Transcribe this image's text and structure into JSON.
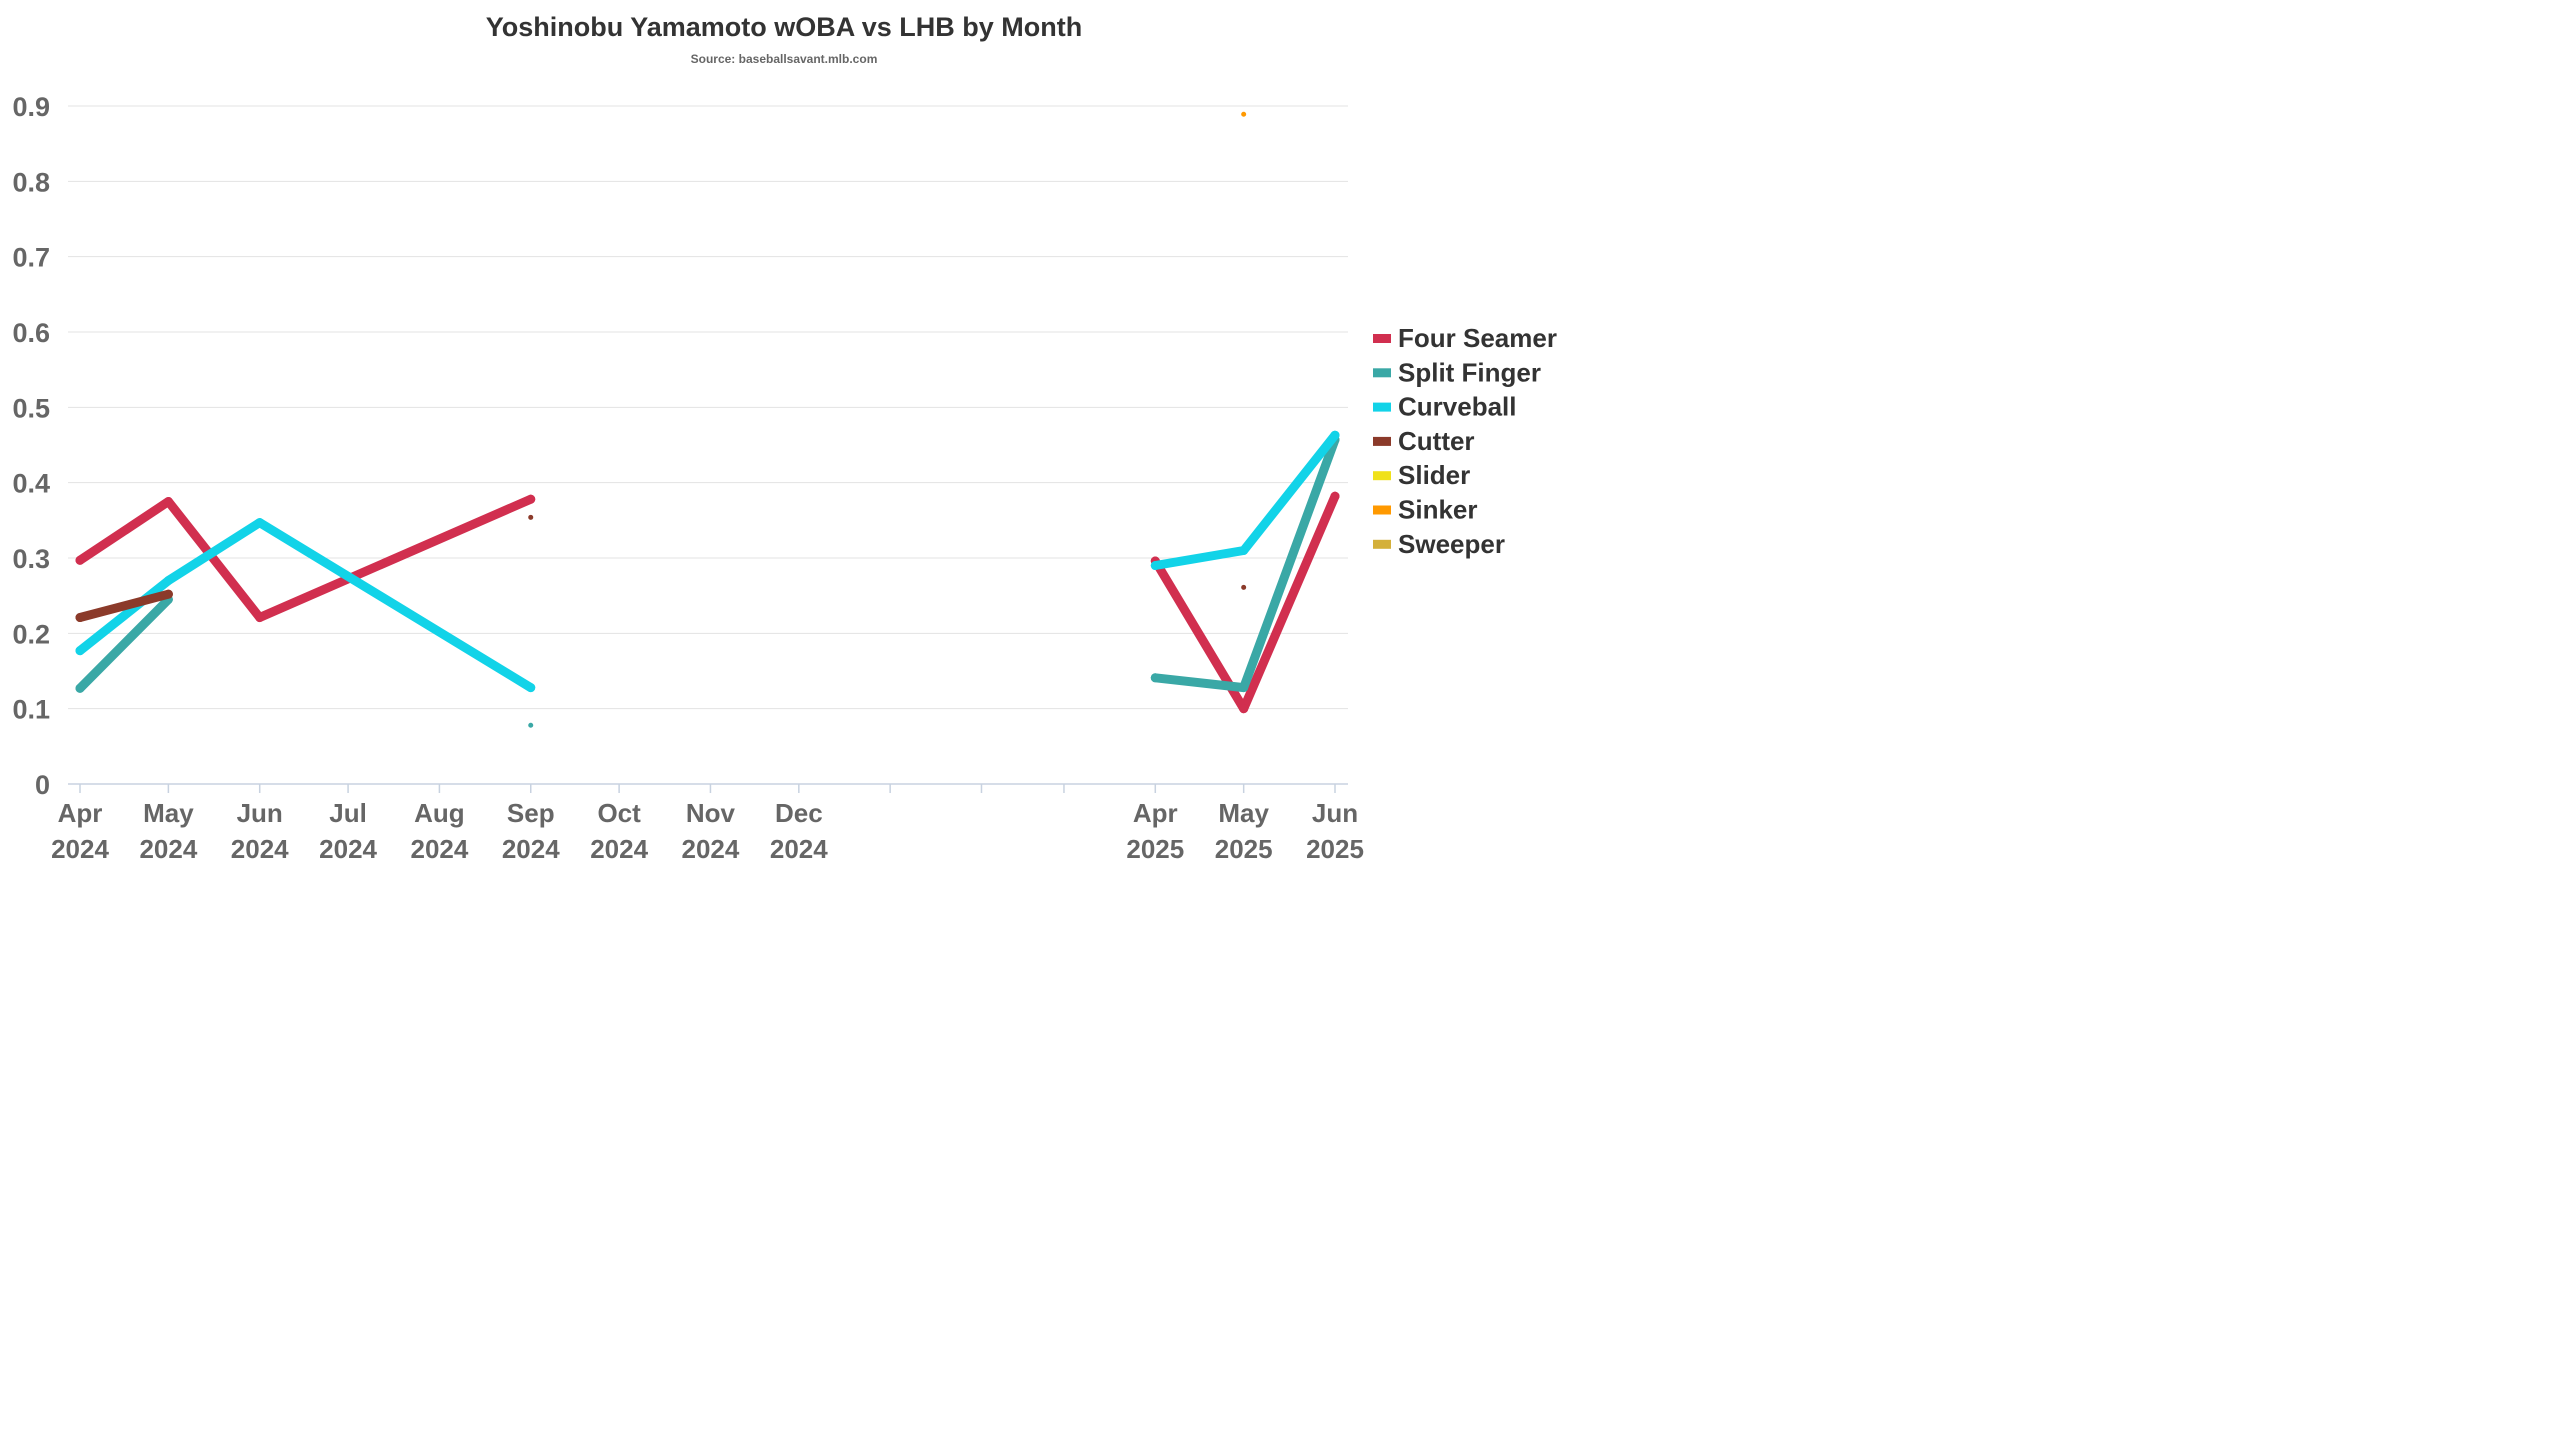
{
  "chart_data": {
    "type": "line",
    "title": "Yoshinobu Yamamoto wOBA vs LHB by Month",
    "subtitle": "Source: baseballsavant.mlb.com",
    "xlabel": "",
    "ylabel": "",
    "ylim": [
      0,
      0.9
    ],
    "yticks": [
      "0",
      "0.1",
      "0.2",
      "0.3",
      "0.4",
      "0.5",
      "0.6",
      "0.7",
      "0.8",
      "0.9"
    ],
    "grid": true,
    "legend_position": "right",
    "categories": [
      {
        "month": "Apr",
        "year": "2024",
        "date": "2024-04"
      },
      {
        "month": "May",
        "year": "2024",
        "date": "2024-05"
      },
      {
        "month": "Jun",
        "year": "2024",
        "date": "2024-06"
      },
      {
        "month": "Jul",
        "year": "2024",
        "date": "2024-07"
      },
      {
        "month": "Aug",
        "year": "2024",
        "date": "2024-08"
      },
      {
        "month": "Sep",
        "year": "2024",
        "date": "2024-09"
      },
      {
        "month": "Oct",
        "year": "2024",
        "date": "2024-10"
      },
      {
        "month": "Nov",
        "year": "2024",
        "date": "2024-11"
      },
      {
        "month": "Dec",
        "year": "2024",
        "date": "2024-12"
      },
      {
        "month": "",
        "year": "",
        "date": "2025-01"
      },
      {
        "month": "",
        "year": "",
        "date": "2025-02"
      },
      {
        "month": "",
        "year": "",
        "date": "2025-03"
      },
      {
        "month": "Apr",
        "year": "2025",
        "date": "2025-04"
      },
      {
        "month": "May",
        "year": "2025",
        "date": "2025-05"
      },
      {
        "month": "Jun",
        "year": "2025",
        "date": "2025-06"
      }
    ],
    "series": [
      {
        "name": "Four Seamer",
        "color": "#d12f4f",
        "points": [
          {
            "x": "2024-04",
            "y": 0.297
          },
          {
            "x": "2024-05",
            "y": 0.375
          },
          {
            "x": "2024-06",
            "y": 0.221
          },
          {
            "x": "2024-09",
            "y": 0.378
          },
          {
            "x": "2025-04",
            "y": 0.296
          },
          {
            "x": "2025-05",
            "y": 0.1
          },
          {
            "x": "2025-06",
            "y": 0.382
          }
        ]
      },
      {
        "name": "Split Finger",
        "color": "#3aa8a6",
        "points": [
          {
            "x": "2024-04",
            "y": 0.127
          },
          {
            "x": "2024-05",
            "y": 0.245
          },
          {
            "x": "2024-09",
            "y": 0.078
          },
          {
            "x": "2025-04",
            "y": 0.141
          },
          {
            "x": "2025-05",
            "y": 0.128
          },
          {
            "x": "2025-06",
            "y": 0.457
          }
        ]
      },
      {
        "name": "Curveball",
        "color": "#12d3e8",
        "points": [
          {
            "x": "2024-04",
            "y": 0.177
          },
          {
            "x": "2024-05",
            "y": 0.27
          },
          {
            "x": "2024-06",
            "y": 0.347
          },
          {
            "x": "2024-09",
            "y": 0.128
          },
          {
            "x": "2025-04",
            "y": 0.29
          },
          {
            "x": "2025-05",
            "y": 0.31
          },
          {
            "x": "2025-06",
            "y": 0.463
          }
        ]
      },
      {
        "name": "Cutter",
        "color": "#8b3a2a",
        "points": [
          {
            "x": "2024-04",
            "y": 0.221
          },
          {
            "x": "2024-05",
            "y": 0.252
          },
          {
            "x": "2024-09",
            "y": 0.354
          },
          {
            "x": "2025-05",
            "y": 0.261
          }
        ]
      },
      {
        "name": "Slider",
        "color": "#f0e11b",
        "points": []
      },
      {
        "name": "Sinker",
        "color": "#ff9900",
        "points": [
          {
            "x": "2025-05",
            "y": 0.889
          }
        ]
      },
      {
        "name": "Sweeper",
        "color": "#d4b03a",
        "points": []
      }
    ]
  }
}
